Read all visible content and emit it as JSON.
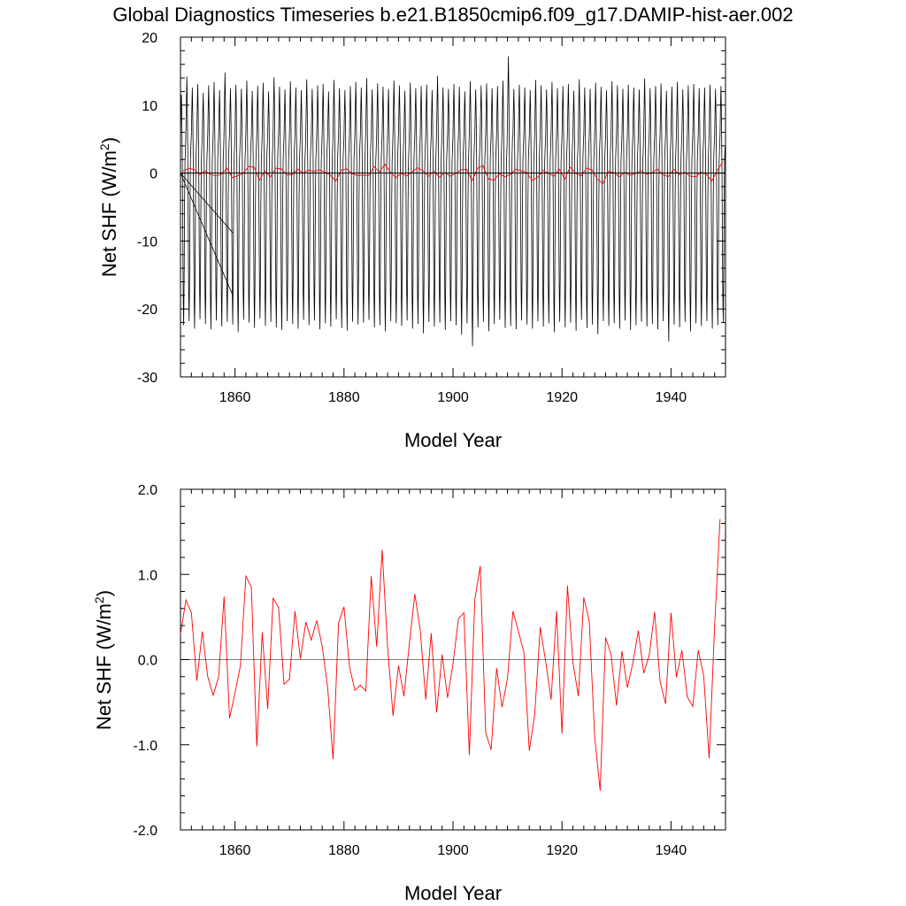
{
  "figure_title": "Global Diagnostics Timeseries b.e21.B1850cmip6.f09_g17.DAMIP-hist-aer.002",
  "colors": {
    "monthly": "#000000",
    "annual": "#ff0000",
    "zero_line": "#000000"
  },
  "chart_data": [
    {
      "type": "line",
      "xlabel": "Model Year",
      "ylabel_main": "Net SHF (W/m",
      "ylabel_sup": "2",
      "ylabel_close": ")",
      "xlim": [
        1850,
        1950
      ],
      "ylim": [
        -30,
        20
      ],
      "xticks": [
        1860,
        1880,
        1900,
        1920,
        1940
      ],
      "yticks": [
        -30,
        -20,
        -10,
        0,
        10,
        20
      ],
      "ytick_labels": [
        "-30",
        "-20",
        "-10",
        "0",
        "10",
        "20"
      ],
      "zero_line": 0,
      "grid": false,
      "monthly_series": {
        "description": "monthly global mean, seasonal cycle",
        "annual_max": [
          11.5,
          14.2,
          12.6,
          13.1,
          11.8,
          12.9,
          13.4,
          12.2,
          14.8,
          12.5,
          13.0,
          12.4,
          13.6,
          12.1,
          12.8,
          13.3,
          12.0,
          14.1,
          12.7,
          12.3,
          13.5,
          12.6,
          12.2,
          13.8,
          12.4,
          12.9,
          13.1,
          12.0,
          13.7,
          12.5,
          12.2,
          12.8,
          13.4,
          12.6,
          14.0,
          12.3,
          13.2,
          12.7,
          12.4,
          13.6,
          12.9,
          12.1,
          13.3,
          12.5,
          12.8,
          13.0,
          12.2,
          14.3,
          12.6,
          12.4,
          13.1,
          12.7,
          12.0,
          13.5,
          12.3,
          12.9,
          13.2,
          12.5,
          12.8,
          13.6,
          17.2,
          12.4,
          13.0,
          12.6,
          12.2,
          13.7,
          12.9,
          12.3,
          13.4,
          12.5,
          12.8,
          13.1,
          12.1,
          13.8,
          12.6,
          12.4,
          13.3,
          12.7,
          12.2,
          13.5,
          12.9,
          12.4,
          13.0,
          12.6,
          12.3,
          13.9,
          12.5,
          12.8,
          13.2,
          12.1,
          12.7,
          13.4,
          12.3,
          12.9,
          13.1,
          12.5,
          12.6,
          13.0,
          12.4,
          12.8
        ],
        "annual_min": [
          -22.4,
          -21.8,
          -22.9,
          -21.5,
          -22.2,
          -23.0,
          -21.7,
          -22.6,
          -21.9,
          -22.3,
          -23.4,
          -21.6,
          -22.0,
          -22.8,
          -21.4,
          -22.5,
          -21.9,
          -22.7,
          -23.1,
          -21.8,
          -22.2,
          -22.9,
          -21.6,
          -22.4,
          -21.7,
          -23.0,
          -22.1,
          -22.6,
          -21.5,
          -22.8,
          -23.2,
          -21.9,
          -22.3,
          -22.0,
          -21.6,
          -22.7,
          -22.4,
          -23.3,
          -21.8,
          -22.1,
          -22.5,
          -21.7,
          -22.9,
          -22.2,
          -23.6,
          -21.9,
          -22.6,
          -22.0,
          -23.1,
          -21.8,
          -22.4,
          -23.8,
          -22.1,
          -25.5,
          -22.7,
          -21.9,
          -23.3,
          -22.2,
          -21.6,
          -22.8,
          -22.5,
          -23.0,
          -21.7,
          -22.3,
          -22.9,
          -21.8,
          -22.6,
          -22.1,
          -23.4,
          -21.9,
          -22.7,
          -22.0,
          -23.2,
          -21.6,
          -22.8,
          -22.3,
          -23.7,
          -21.8,
          -22.5,
          -22.1,
          -22.9,
          -21.7,
          -23.1,
          -22.4,
          -21.9,
          -22.6,
          -22.2,
          -23.0,
          -21.8,
          -24.8,
          -22.3,
          -22.7,
          -21.9,
          -23.3,
          -22.1,
          -22.5,
          -21.8,
          -22.9,
          -22.4,
          -21.9
        ]
      },
      "spurious_lines": [
        {
          "from": [
            1850.0,
            0.0
          ],
          "to": [
            1859.6,
            -8.8
          ]
        },
        {
          "from": [
            1850.0,
            0.0
          ],
          "to": [
            1859.6,
            -18.0
          ]
        }
      ]
    },
    {
      "type": "line",
      "xlabel": "Model Year",
      "ylabel_main": "Net SHF (W/m",
      "ylabel_sup": "2",
      "ylabel_close": ")",
      "xlim": [
        1850,
        1950
      ],
      "ylim": [
        -2.0,
        2.0
      ],
      "xticks": [
        1860,
        1880,
        1900,
        1920,
        1940
      ],
      "yticks": [
        -2.0,
        -1.0,
        0.0,
        1.0,
        2.0
      ],
      "ytick_labels": [
        "-2.0",
        "-1.0",
        "0.0",
        "1.0",
        "2.0"
      ],
      "zero_line": 0,
      "grid": false,
      "series": [
        {
          "x_start": 1850,
          "values": [
            0.3,
            0.7,
            0.55,
            -0.25,
            0.33,
            -0.2,
            -0.42,
            -0.2,
            0.74,
            -0.69,
            -0.39,
            -0.07,
            0.98,
            0.85,
            -1.02,
            0.32,
            -0.58,
            0.72,
            0.61,
            -0.29,
            -0.23,
            0.57,
            0.01,
            0.44,
            0.23,
            0.46,
            0.16,
            -0.33,
            -1.17,
            0.43,
            0.62,
            -0.08,
            -0.36,
            -0.3,
            -0.37,
            0.98,
            0.15,
            1.29,
            0.15,
            -0.66,
            -0.07,
            -0.43,
            0.19,
            0.77,
            0.34,
            -0.47,
            0.31,
            -0.62,
            0.06,
            -0.45,
            -0.05,
            0.48,
            0.55,
            -1.12,
            0.7,
            1.1,
            -0.86,
            -1.06,
            -0.1,
            -0.56,
            -0.22,
            0.57,
            0.33,
            0.09,
            -1.07,
            -0.64,
            0.38,
            -0.02,
            -0.47,
            0.57,
            -0.87,
            0.87,
            -0.03,
            -0.43,
            0.73,
            0.45,
            -0.91,
            -1.54,
            0.26,
            0.06,
            -0.54,
            0.1,
            -0.33,
            -0.04,
            0.34,
            -0.16,
            0.05,
            0.56,
            -0.26,
            -0.52,
            0.55,
            -0.21,
            0.11,
            -0.44,
            -0.55,
            0.11,
            -0.19,
            -1.16,
            0.39,
            1.65
          ]
        }
      ]
    }
  ]
}
